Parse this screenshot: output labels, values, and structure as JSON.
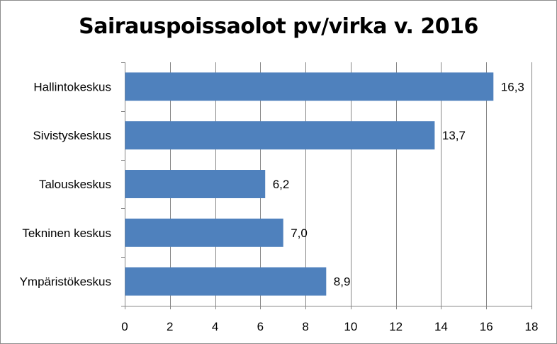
{
  "chart_data": {
    "type": "bar",
    "orientation": "horizontal",
    "title": "Sairauspoissaolot pv/virka v. 2016",
    "categories": [
      "Hallintokeskus",
      "Sivistyskeskus",
      "Talouskeskus",
      "Tekninen keskus",
      "Ympäristökeskus"
    ],
    "values": [
      16.3,
      13.7,
      6.2,
      7.0,
      8.9
    ],
    "data_labels": [
      "16,3",
      "13,7",
      "6,2",
      "7,0",
      "8,9"
    ],
    "xlim": [
      0,
      18
    ],
    "x_ticks": [
      "0",
      "2",
      "4",
      "6",
      "8",
      "10",
      "12",
      "14",
      "16",
      "18"
    ],
    "x_tick_values": [
      0,
      2,
      4,
      6,
      8,
      10,
      12,
      14,
      16,
      18
    ],
    "xlabel": "",
    "ylabel": "",
    "grid": "vertical",
    "legend": "none",
    "bar_color": "#4F81BD",
    "grid_color": "#868686"
  }
}
